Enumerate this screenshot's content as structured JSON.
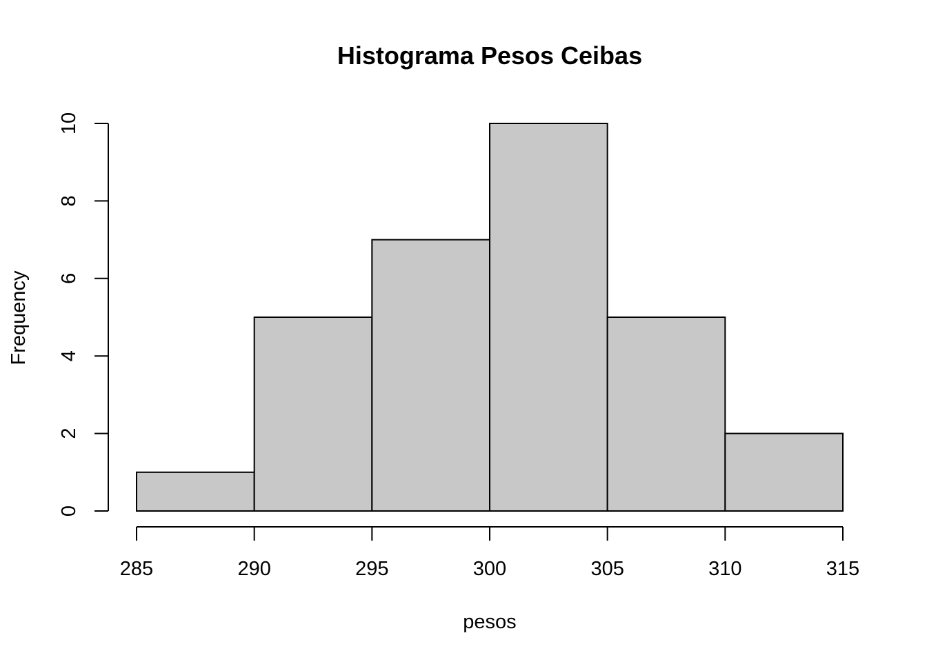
{
  "chart_data": {
    "type": "bar",
    "title": "Histograma Pesos Ceibas",
    "xlabel": "pesos",
    "ylabel": "Frequency",
    "bins": [
      {
        "from": 285,
        "to": 290,
        "count": 1
      },
      {
        "from": 290,
        "to": 295,
        "count": 5
      },
      {
        "from": 295,
        "to": 300,
        "count": 7
      },
      {
        "from": 300,
        "to": 305,
        "count": 10
      },
      {
        "from": 305,
        "to": 310,
        "count": 5
      },
      {
        "from": 310,
        "to": 315,
        "count": 2
      }
    ],
    "x_ticks": [
      "285",
      "290",
      "295",
      "300",
      "305",
      "310",
      "315"
    ],
    "y_ticks": [
      "0",
      "2",
      "4",
      "6",
      "8",
      "10"
    ],
    "xlim": [
      285,
      315
    ],
    "ylim": [
      0,
      10
    ],
    "bar_color": "#c8c8c8",
    "grid": false
  }
}
